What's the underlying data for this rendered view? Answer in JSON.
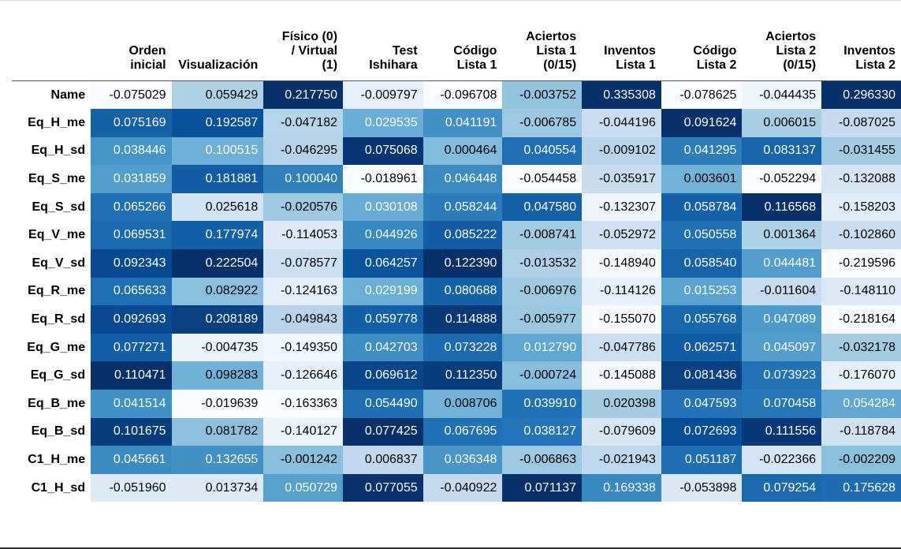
{
  "columns": [
    "Orden\ninicial",
    "Visualización",
    "Físico (0)\n/ Virtual\n(1)",
    "Test\nIshihara",
    "Código\nLista 1",
    "Aciertos\nLista 1\n(0/15)",
    "Inventos\nLista 1",
    "Código\nLista 2",
    "Aciertos\nLista 2\n(0/15)",
    "Inventos\nLista 2"
  ],
  "rows": [
    {
      "label": "Name",
      "values": [
        "-0.075029",
        "0.059429",
        "0.217750",
        "-0.009797",
        "-0.096708",
        "-0.003752",
        "0.335308",
        "-0.078625",
        "-0.044435",
        "0.296330"
      ]
    },
    {
      "label": "Eq_H_me",
      "values": [
        "0.075169",
        "0.192587",
        "-0.047182",
        "0.029535",
        "0.041191",
        "-0.006785",
        "-0.044196",
        "0.091624",
        "0.006015",
        "-0.087025"
      ]
    },
    {
      "label": "Eq_H_sd",
      "values": [
        "0.038446",
        "0.100515",
        "-0.046295",
        "0.075068",
        "0.000464",
        "0.040554",
        "-0.009102",
        "0.041295",
        "0.083137",
        "-0.031455"
      ]
    },
    {
      "label": "Eq_S_me",
      "values": [
        "0.031859",
        "0.181881",
        "0.100040",
        "-0.018961",
        "0.046448",
        "-0.054458",
        "-0.035917",
        "0.003601",
        "-0.052294",
        "-0.132088"
      ]
    },
    {
      "label": "Eq_S_sd",
      "values": [
        "0.065266",
        "0.025618",
        "-0.020576",
        "0.030108",
        "0.058244",
        "0.047580",
        "-0.132307",
        "0.058784",
        "0.116568",
        "-0.158203"
      ]
    },
    {
      "label": "Eq_V_me",
      "values": [
        "0.069531",
        "0.177974",
        "-0.114053",
        "0.044926",
        "0.085222",
        "-0.008741",
        "-0.052972",
        "0.050558",
        "0.001364",
        "-0.102860"
      ]
    },
    {
      "label": "Eq_V_sd",
      "values": [
        "0.092343",
        "0.222504",
        "-0.078577",
        "0.064257",
        "0.122390",
        "-0.013532",
        "-0.148940",
        "0.058540",
        "0.044481",
        "-0.219596"
      ]
    },
    {
      "label": "Eq_R_me",
      "values": [
        "0.065633",
        "0.082922",
        "-0.124163",
        "0.029199",
        "0.080688",
        "-0.006976",
        "-0.114126",
        "0.015253",
        "-0.011604",
        "-0.148110"
      ]
    },
    {
      "label": "Eq_R_sd",
      "values": [
        "0.092693",
        "0.208189",
        "-0.049843",
        "0.059778",
        "0.114888",
        "-0.005977",
        "-0.155070",
        "0.055768",
        "0.047089",
        "-0.218164"
      ]
    },
    {
      "label": "Eq_G_me",
      "values": [
        "0.077271",
        "-0.004735",
        "-0.149350",
        "0.042703",
        "0.073228",
        "0.012790",
        "-0.047786",
        "0.062571",
        "0.045097",
        "-0.032178"
      ]
    },
    {
      "label": "Eq_G_sd",
      "values": [
        "0.110471",
        "0.098283",
        "-0.126646",
        "0.069612",
        "0.112350",
        "-0.000724",
        "-0.145088",
        "0.081436",
        "0.073923",
        "-0.176070"
      ]
    },
    {
      "label": "Eq_B_me",
      "values": [
        "0.041514",
        "-0.019639",
        "-0.163363",
        "0.054490",
        "0.008706",
        "0.039910",
        "0.020398",
        "0.047593",
        "0.070458",
        "0.054284"
      ]
    },
    {
      "label": "Eq_B_sd",
      "values": [
        "0.101675",
        "0.081782",
        "-0.140127",
        "0.077425",
        "0.067695",
        "0.038127",
        "-0.079609",
        "0.072693",
        "0.111556",
        "-0.118784"
      ]
    },
    {
      "label": "C1_H_me",
      "values": [
        "0.045661",
        "0.132655",
        "-0.001242",
        "0.006837",
        "0.036348",
        "-0.006863",
        "-0.021943",
        "0.051187",
        "-0.022366",
        "-0.002209"
      ]
    },
    {
      "label": "C1_H_sd",
      "values": [
        "-0.051960",
        "0.013734",
        "0.050729",
        "0.077055",
        "-0.040922",
        "0.071137",
        "0.169338",
        "-0.053898",
        "0.079254",
        "0.175628"
      ]
    }
  ],
  "colormap": {
    "name": "Blues",
    "low": "#f7fbff",
    "high": "#08306b",
    "text_light": "#ffffff",
    "text_dark": "#000000"
  }
}
